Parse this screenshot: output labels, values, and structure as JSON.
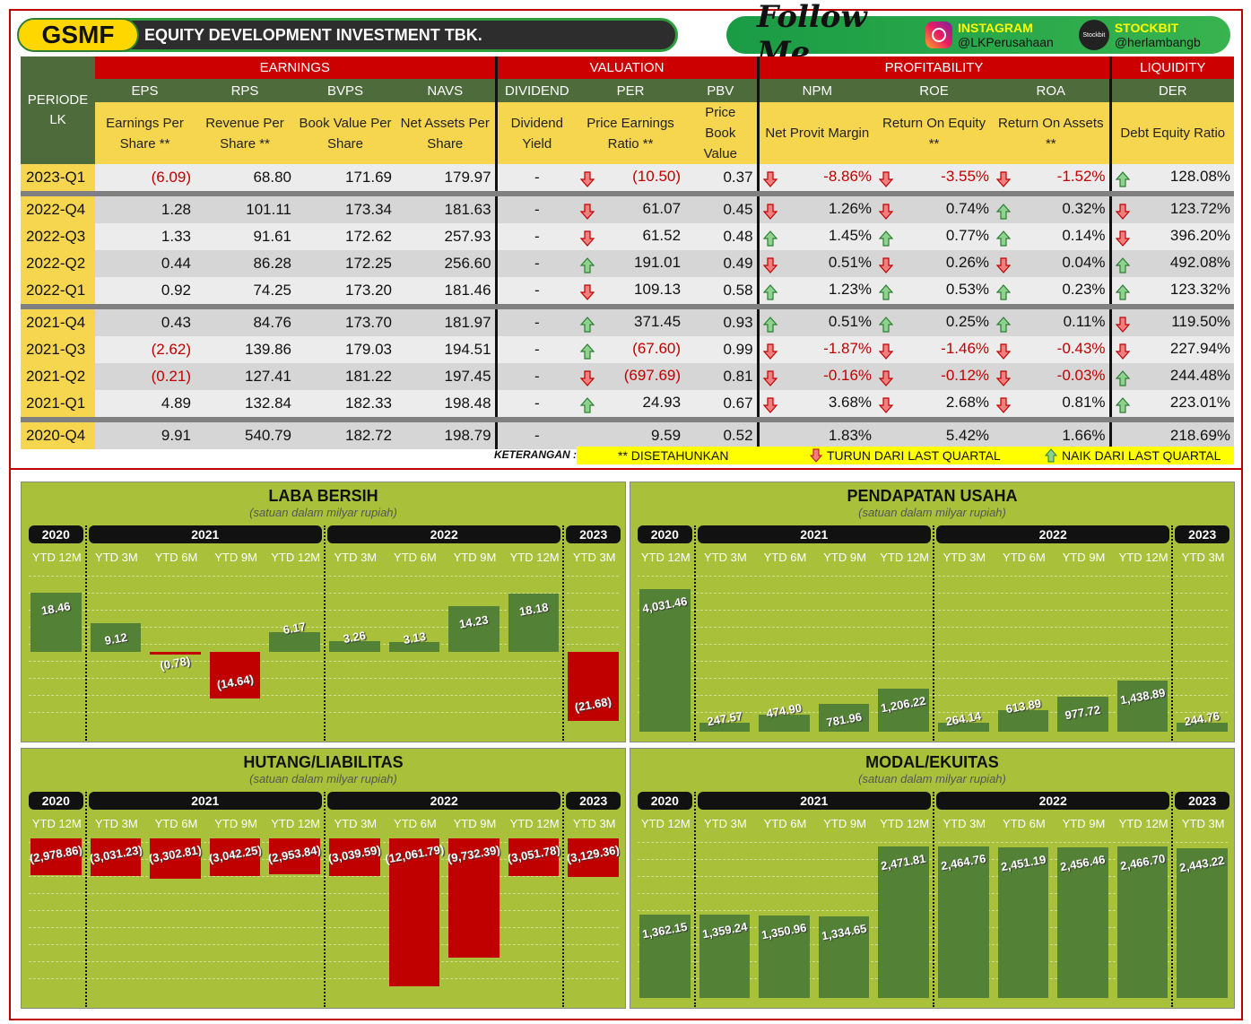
{
  "header": {
    "ticker": "GSMF",
    "company": "EQUITY DEVELOPMENT  INVESTMENT TBK.",
    "follow_text": "Follow Me",
    "instagram_label": "INSTAGRAM",
    "instagram_handle": "@LKPerusahaan",
    "stockbit_label": "STOCKBIT",
    "stockbit_handle": "@herlambangb",
    "stockbit_logo_text": "Stockbit"
  },
  "table": {
    "periode_label": "PERIODE LK",
    "groups": {
      "earnings": "EARNINGS",
      "valuation": "VALUATION",
      "profitability": "PROFITABILITY",
      "liquidity": "LIQUIDITY"
    },
    "columns": [
      {
        "abbr": "EPS",
        "desc": "Earnings Per Share **"
      },
      {
        "abbr": "RPS",
        "desc": "Revenue Per Share **"
      },
      {
        "abbr": "BVPS",
        "desc": "Book Value Per Share"
      },
      {
        "abbr": "NAVS",
        "desc": "Net Assets Per Share"
      },
      {
        "abbr": "DIVIDEND",
        "desc": "Dividend Yield"
      },
      {
        "abbr": "PER",
        "desc": "Price Earnings Ratio **"
      },
      {
        "abbr": "PBV",
        "desc": "Price Book Value"
      },
      {
        "abbr": "NPM",
        "desc": "Net Provit Margin"
      },
      {
        "abbr": "ROE",
        "desc": "Return On Equity **"
      },
      {
        "abbr": "ROA",
        "desc": "Return On Assets **"
      },
      {
        "abbr": "DER",
        "desc": "Debt Equity Ratio"
      }
    ],
    "rows": [
      {
        "periode": "2023-Q1",
        "eps": "(6.09)",
        "rps": "68.80",
        "bvps": "171.69",
        "navs": "179.97",
        "div": "-",
        "per": "(10.50)",
        "per_arrow": "down",
        "pbv": "0.37",
        "npm": "-8.86%",
        "npm_arrow": "down",
        "roe": "-3.55%",
        "roe_arrow": "down",
        "roa": "-1.52%",
        "roa_arrow": "down",
        "der": "128.08%",
        "der_arrow": "up"
      },
      {
        "periode": "2022-Q4",
        "eps": "1.28",
        "rps": "101.11",
        "bvps": "173.34",
        "navs": "181.63",
        "div": "-",
        "per": "61.07",
        "per_arrow": "down",
        "pbv": "0.45",
        "npm": "1.26%",
        "npm_arrow": "down",
        "roe": "0.74%",
        "roe_arrow": "down",
        "roa": "0.32%",
        "roa_arrow": "up",
        "der": "123.72%",
        "der_arrow": "down"
      },
      {
        "periode": "2022-Q3",
        "eps": "1.33",
        "rps": "91.61",
        "bvps": "172.62",
        "navs": "257.93",
        "div": "-",
        "per": "61.52",
        "per_arrow": "down",
        "pbv": "0.48",
        "npm": "1.45%",
        "npm_arrow": "up",
        "roe": "0.77%",
        "roe_arrow": "up",
        "roa": "0.14%",
        "roa_arrow": "up",
        "der": "396.20%",
        "der_arrow": "down"
      },
      {
        "periode": "2022-Q2",
        "eps": "0.44",
        "rps": "86.28",
        "bvps": "172.25",
        "navs": "256.60",
        "div": "-",
        "per": "191.01",
        "per_arrow": "up",
        "pbv": "0.49",
        "npm": "0.51%",
        "npm_arrow": "down",
        "roe": "0.26%",
        "roe_arrow": "down",
        "roa": "0.04%",
        "roa_arrow": "down",
        "der": "492.08%",
        "der_arrow": "up"
      },
      {
        "periode": "2022-Q1",
        "eps": "0.92",
        "rps": "74.25",
        "bvps": "173.20",
        "navs": "181.46",
        "div": "-",
        "per": "109.13",
        "per_arrow": "down",
        "pbv": "0.58",
        "npm": "1.23%",
        "npm_arrow": "up",
        "roe": "0.53%",
        "roe_arrow": "up",
        "roa": "0.23%",
        "roa_arrow": "up",
        "der": "123.32%",
        "der_arrow": "up"
      },
      {
        "periode": "2021-Q4",
        "eps": "0.43",
        "rps": "84.76",
        "bvps": "173.70",
        "navs": "181.97",
        "div": "-",
        "per": "371.45",
        "per_arrow": "up",
        "pbv": "0.93",
        "npm": "0.51%",
        "npm_arrow": "up",
        "roe": "0.25%",
        "roe_arrow": "up",
        "roa": "0.11%",
        "roa_arrow": "up",
        "der": "119.50%",
        "der_arrow": "down"
      },
      {
        "periode": "2021-Q3",
        "eps": "(2.62)",
        "rps": "139.86",
        "bvps": "179.03",
        "navs": "194.51",
        "div": "-",
        "per": "(67.60)",
        "per_arrow": "up",
        "pbv": "0.99",
        "npm": "-1.87%",
        "npm_arrow": "down",
        "roe": "-1.46%",
        "roe_arrow": "down",
        "roa": "-0.43%",
        "roa_arrow": "down",
        "der": "227.94%",
        "der_arrow": "down"
      },
      {
        "periode": "2021-Q2",
        "eps": "(0.21)",
        "rps": "127.41",
        "bvps": "181.22",
        "navs": "197.45",
        "div": "-",
        "per": "(697.69)",
        "per_arrow": "down",
        "pbv": "0.81",
        "npm": "-0.16%",
        "npm_arrow": "down",
        "roe": "-0.12%",
        "roe_arrow": "down",
        "roa": "-0.03%",
        "roa_arrow": "down",
        "der": "244.48%",
        "der_arrow": "up"
      },
      {
        "periode": "2021-Q1",
        "eps": "4.89",
        "rps": "132.84",
        "bvps": "182.33",
        "navs": "198.48",
        "div": "-",
        "per": "24.93",
        "per_arrow": "up",
        "pbv": "0.67",
        "npm": "3.68%",
        "npm_arrow": "down",
        "roe": "2.68%",
        "roe_arrow": "down",
        "roa": "0.81%",
        "roa_arrow": "down",
        "der": "223.01%",
        "der_arrow": "up"
      },
      {
        "periode": "2020-Q4",
        "eps": "9.91",
        "rps": "540.79",
        "bvps": "182.72",
        "navs": "198.79",
        "div": "-",
        "per": "9.59",
        "per_arrow": "",
        "pbv": "0.52",
        "npm": "1.83%",
        "npm_arrow": "",
        "roe": "5.42%",
        "roe_arrow": "",
        "roa": "1.66%",
        "roa_arrow": "",
        "der": "218.69%",
        "der_arrow": ""
      }
    ],
    "legend": {
      "label": "KETERANGAN :",
      "annualized": "** DISETAHUNKAN",
      "down": "TURUN DARI LAST QUARTAL",
      "up": "NAIK DARI LAST QUARTAL"
    }
  },
  "colors": {
    "panel_bg": "#a9c13a",
    "bar_positive": "#538135",
    "bar_negative": "#c00000",
    "arrow_up": "#3aa14a",
    "arrow_down": "#e0393e"
  },
  "chart_data": [
    {
      "type": "bar",
      "title": "LABA BERSIH",
      "subtitle": "(satuan dalam milyar rupiah)",
      "years": [
        "2020",
        "2021",
        "2022",
        "2023"
      ],
      "categories": [
        "YTD 12M",
        "YTD 3M",
        "YTD 6M",
        "YTD 9M",
        "YTD 12M",
        "YTD 3M",
        "YTD 6M",
        "YTD 9M",
        "YTD 12M",
        "YTD 3M"
      ],
      "values": [
        18.46,
        9.12,
        -0.78,
        -14.64,
        6.17,
        3.26,
        3.13,
        14.23,
        18.18,
        -21.68
      ],
      "labels": [
        "18.46",
        "9.12",
        "(0.78)",
        "(14.64)",
        "6.17",
        "3.26",
        "3.13",
        "14.23",
        "18.18",
        "(21.68)"
      ],
      "ylim": [
        -25,
        25
      ]
    },
    {
      "type": "bar",
      "title": "PENDAPATAN  USAHA",
      "subtitle": "(satuan dalam milyar rupiah)",
      "years": [
        "2020",
        "2021",
        "2022",
        "2023"
      ],
      "categories": [
        "YTD 12M",
        "YTD 3M",
        "YTD 6M",
        "YTD 9M",
        "YTD 12M",
        "YTD 3M",
        "YTD 6M",
        "YTD 9M",
        "YTD 12M",
        "YTD 3M"
      ],
      "values": [
        4031.46,
        247.57,
        474.9,
        781.96,
        1206.22,
        264.14,
        613.89,
        977.72,
        1438.89,
        244.76
      ],
      "labels": [
        "4,031.46",
        "247.57",
        "474.90",
        "781.96",
        "1,206.22",
        "264.14",
        "613.89",
        "977.72",
        "1,438.89",
        "244.76"
      ],
      "ylim": [
        0,
        4500
      ]
    },
    {
      "type": "bar",
      "title": "HUTANG/LIABILITAS",
      "subtitle": "(satuan dalam milyar rupiah)",
      "years": [
        "2020",
        "2021",
        "2022",
        "2023"
      ],
      "categories": [
        "YTD 12M",
        "YTD 3M",
        "YTD 6M",
        "YTD 9M",
        "YTD 12M",
        "YTD 3M",
        "YTD 6M",
        "YTD 9M",
        "YTD 12M",
        "YTD 3M"
      ],
      "values": [
        -2978.86,
        -3031.23,
        -3302.81,
        -3042.25,
        -2953.84,
        -3039.59,
        -12061.79,
        -9732.39,
        -3051.78,
        -3129.36
      ],
      "labels": [
        "(2,978.86)",
        "(3,031.23)",
        "(3,302.81)",
        "(3,042.25)",
        "(2,953.84)",
        "(3,039.59)",
        "(12,061.79)",
        "(9,732.39)",
        "(3,051.78)",
        "(3,129.36)"
      ],
      "ylim": [
        -13000,
        0
      ]
    },
    {
      "type": "bar",
      "title": "MODAL/EKUITAS",
      "subtitle": "(satuan dalam milyar rupiah)",
      "years": [
        "2020",
        "2021",
        "2022",
        "2023"
      ],
      "categories": [
        "YTD 12M",
        "YTD 3M",
        "YTD 6M",
        "YTD 9M",
        "YTD 12M",
        "YTD 3M",
        "YTD 6M",
        "YTD 9M",
        "YTD 12M",
        "YTD 3M"
      ],
      "values": [
        1362.15,
        1359.24,
        1350.96,
        1334.65,
        2471.81,
        2464.76,
        2451.19,
        2456.46,
        2466.7,
        2443.22
      ],
      "labels": [
        "1,362.15",
        "1,359.24",
        "1,350.96",
        "1,334.65",
        "2,471.81",
        "2,464.76",
        "2,451.19",
        "2,456.46",
        "2,466.70",
        "2,443.22"
      ],
      "ylim": [
        0,
        2600
      ]
    }
  ]
}
